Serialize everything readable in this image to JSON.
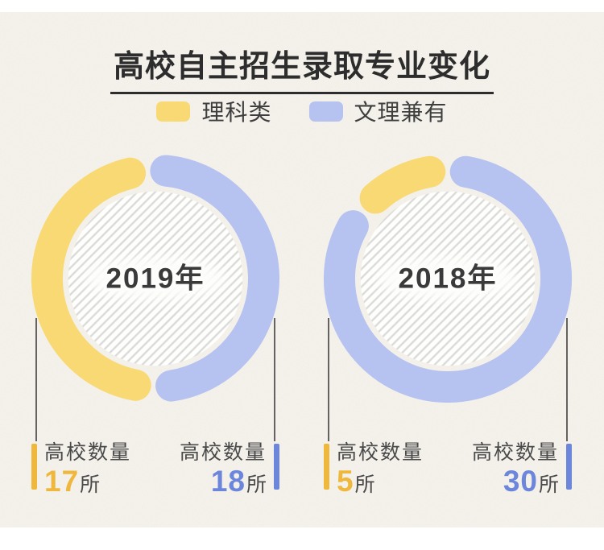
{
  "title": "高校自主招生录取专业变化",
  "legend": [
    {
      "label": "理科类",
      "color": "#F8D974"
    },
    {
      "label": "文理兼有",
      "color": "#B6C2EF"
    }
  ],
  "chart_data": [
    {
      "type": "pie",
      "style": "donut",
      "center_label": "2019年",
      "categories": [
        "文理兼有",
        "理科类"
      ],
      "values": [
        18,
        17
      ],
      "unit": "所",
      "colors": [
        "#B6C2EF",
        "#F8D974"
      ],
      "start_offset_deg": -4,
      "inner_fill": "diagonal-hatch",
      "legend_position": "top"
    },
    {
      "type": "pie",
      "style": "donut",
      "center_label": "2018年",
      "categories": [
        "文理兼有",
        "理科类"
      ],
      "values": [
        30,
        5
      ],
      "unit": "所",
      "colors": [
        "#B6C2EF",
        "#F8D974"
      ],
      "start_offset_deg": 0,
      "inner_fill": "diagonal-hatch",
      "legend_position": "top"
    }
  ],
  "charts": [
    {
      "center_label": "2019年",
      "stats": [
        {
          "title": "高校数量",
          "number": "17",
          "unit": "所",
          "accent": "#EFB83D"
        },
        {
          "title": "高校数量",
          "number": "18",
          "unit": "所",
          "accent": "#6C86DB"
        }
      ]
    },
    {
      "center_label": "2018年",
      "stats": [
        {
          "title": "高校数量",
          "number": "5",
          "unit": "所",
          "accent": "#EFB83D"
        },
        {
          "title": "高校数量",
          "number": "30",
          "unit": "所",
          "accent": "#6C86DB"
        }
      ]
    }
  ],
  "theme": {
    "paper_color": "#F5F2EC",
    "title_color": "#2D2D2D",
    "label_color": "#4A4A4A",
    "hatch_color": "#DADAD8",
    "connector_color": "#4A4A4A",
    "center_text_color": "#3A3A3A"
  }
}
